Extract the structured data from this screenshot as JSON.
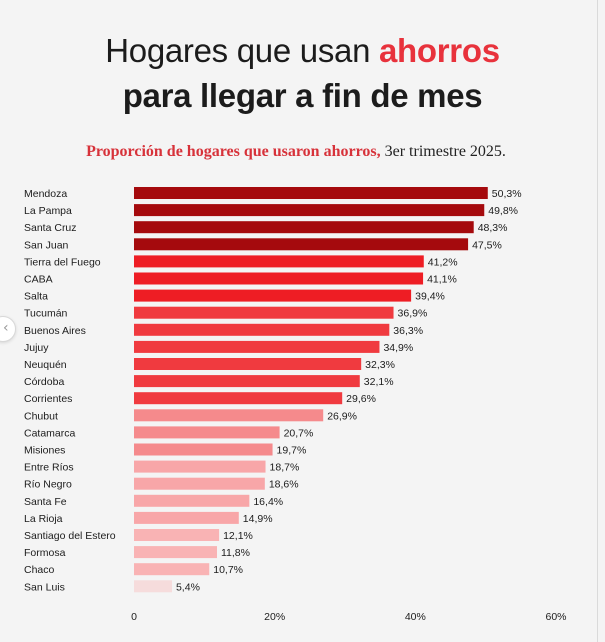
{
  "header": {
    "title_part1": "Hogares que usan ",
    "title_accent": "ahorros",
    "title_line2": "para llegar a fin de mes",
    "subtitle_accent": "Proporción de hogares que usaron ahorros,",
    "subtitle_rest": " 3er trimestre 2025."
  },
  "chart_data": {
    "type": "bar",
    "orientation": "horizontal",
    "categories": [
      "Mendoza",
      "La Pampa",
      "Santa Cruz",
      "San Juan",
      "Tierra del Fuego",
      "CABA",
      "Salta",
      "Tucumán",
      "Buenos Aires",
      "Jujuy",
      "Neuquén",
      "Córdoba",
      "Corrientes",
      "Chubut",
      "Catamarca",
      "Misiones",
      "Entre Ríos",
      "Río Negro",
      "Santa Fe",
      "La Rioja",
      "Santiago del Estero",
      "Formosa",
      "Chaco",
      "San Luis"
    ],
    "values": [
      50.3,
      49.8,
      48.3,
      47.5,
      41.2,
      41.1,
      39.4,
      36.9,
      36.3,
      34.9,
      32.3,
      32.1,
      29.6,
      26.9,
      20.7,
      19.7,
      18.7,
      18.6,
      16.4,
      14.9,
      12.1,
      11.8,
      10.7,
      5.4
    ],
    "value_labels": [
      "50,3%",
      "49,8%",
      "48,3%",
      "47,5%",
      "41,2%",
      "41,1%",
      "39,4%",
      "36,9%",
      "36,3%",
      "34,9%",
      "32,3%",
      "32,1%",
      "29,6%",
      "26,9%",
      "20,7%",
      "19,7%",
      "18,7%",
      "18,6%",
      "16,4%",
      "14,9%",
      "12,1%",
      "11,8%",
      "10,7%",
      "5,4%"
    ],
    "bar_colors": [
      "#a50a0d",
      "#a50a0d",
      "#a50a0d",
      "#a50a0d",
      "#ee1d24",
      "#ee1d24",
      "#ee1d24",
      "#f03a3f",
      "#f03a3f",
      "#f03a3f",
      "#f03a3f",
      "#f03a3f",
      "#f03a3f",
      "#f58a8c",
      "#f58a8c",
      "#f58a8c",
      "#f8a6a8",
      "#f8a6a8",
      "#f8a6a8",
      "#f8a6a8",
      "#f9b3b4",
      "#f9b3b4",
      "#f9b3b4",
      "#f6dcdc"
    ],
    "x_ticks": [
      0,
      20,
      40,
      60
    ],
    "x_tick_labels": [
      "0",
      "20%",
      "40%",
      "60%"
    ],
    "xlim": [
      0,
      60
    ],
    "grid": false
  }
}
